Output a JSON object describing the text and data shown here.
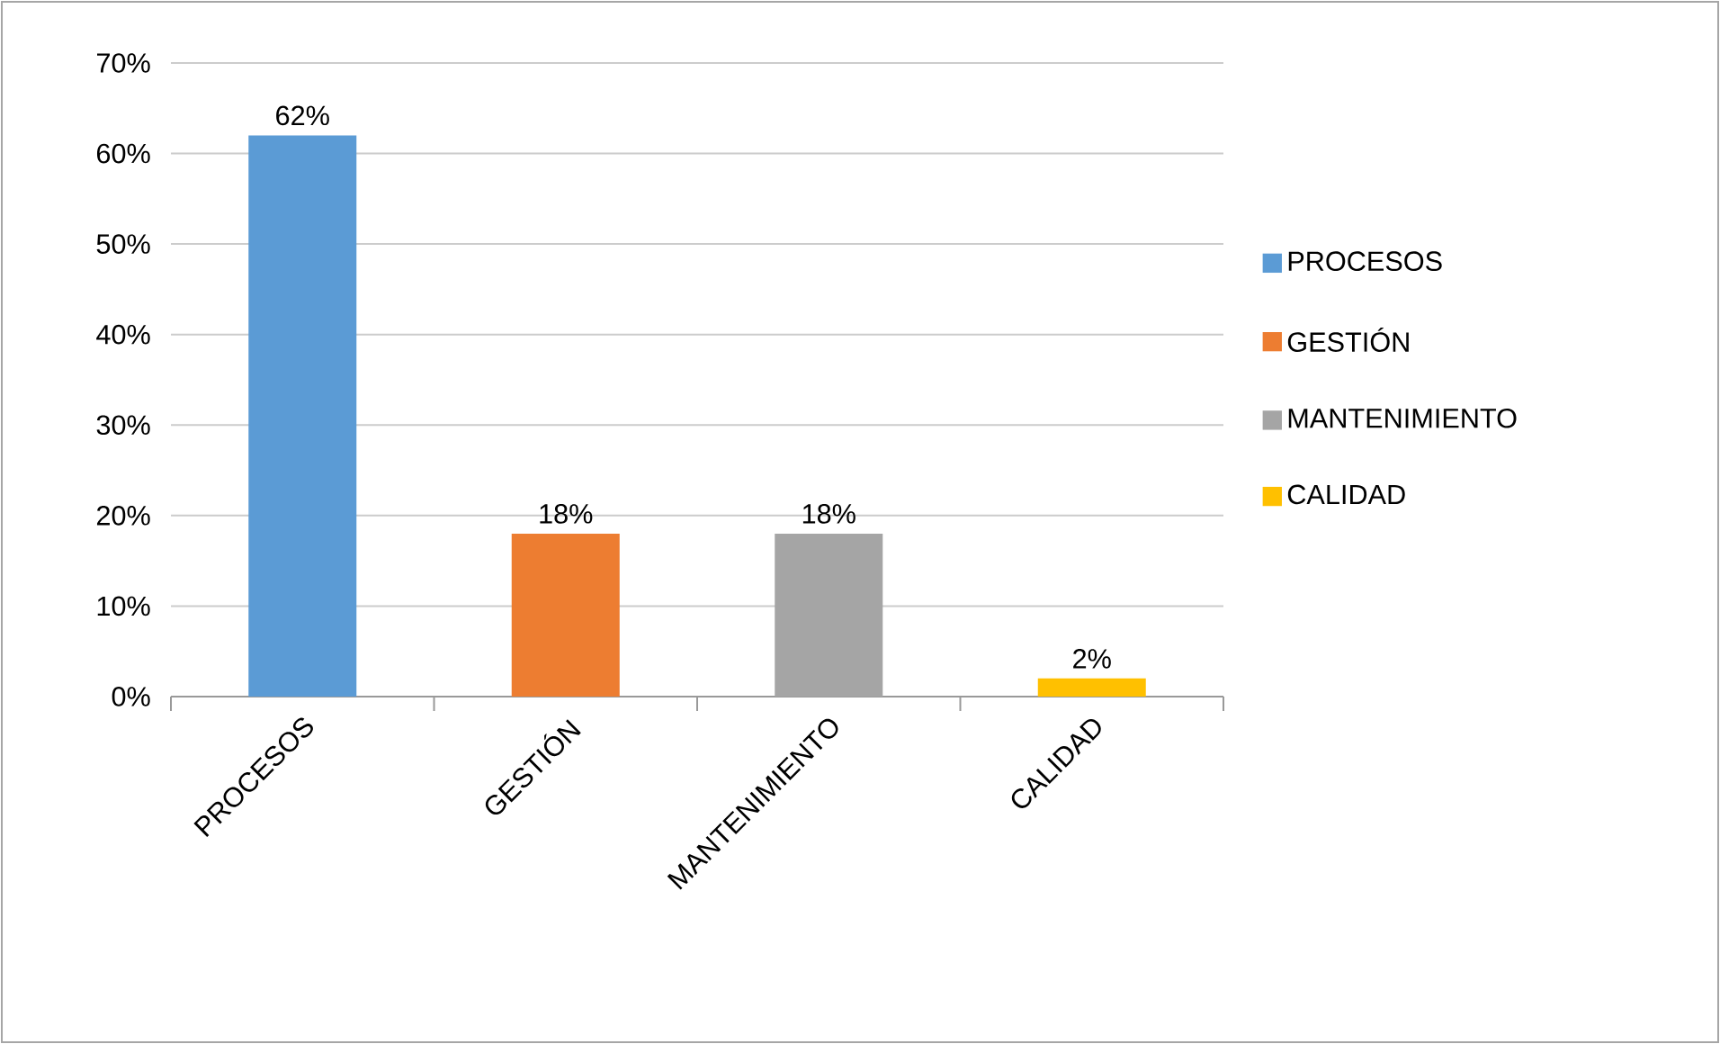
{
  "chart_data": {
    "type": "bar",
    "categories": [
      "PROCESOS",
      "GESTIÓN",
      "MANTENIMIENTO",
      "CALIDAD"
    ],
    "series": [
      {
        "name": "PROCESOS",
        "color": "#5b9bd5",
        "values": [
          62,
          null,
          null,
          null
        ],
        "value_labels": [
          "62%",
          null,
          null,
          null
        ]
      },
      {
        "name": "GESTIÓN",
        "color": "#ed7d31",
        "values": [
          null,
          18,
          null,
          null
        ],
        "value_labels": [
          null,
          "18%",
          null,
          null
        ]
      },
      {
        "name": "MANTENIMIENTO",
        "color": "#a5a5a5",
        "values": [
          null,
          null,
          18,
          null
        ],
        "value_labels": [
          null,
          null,
          "18%",
          null
        ]
      },
      {
        "name": "CALIDAD",
        "color": "#ffc000",
        "values": [
          null,
          null,
          null,
          2
        ],
        "value_labels": [
          null,
          null,
          null,
          "2%"
        ]
      }
    ],
    "ylim": [
      0,
      70
    ],
    "yticks": [
      {
        "value": 0,
        "label": "0%"
      },
      {
        "value": 10,
        "label": "10%"
      },
      {
        "value": 20,
        "label": "20%"
      },
      {
        "value": 30,
        "label": "30%"
      },
      {
        "value": 40,
        "label": "40%"
      },
      {
        "value": 50,
        "label": "50%"
      },
      {
        "value": 60,
        "label": "60%"
      },
      {
        "value": 70,
        "label": "70%"
      }
    ],
    "grid": "y",
    "legend": "right"
  }
}
